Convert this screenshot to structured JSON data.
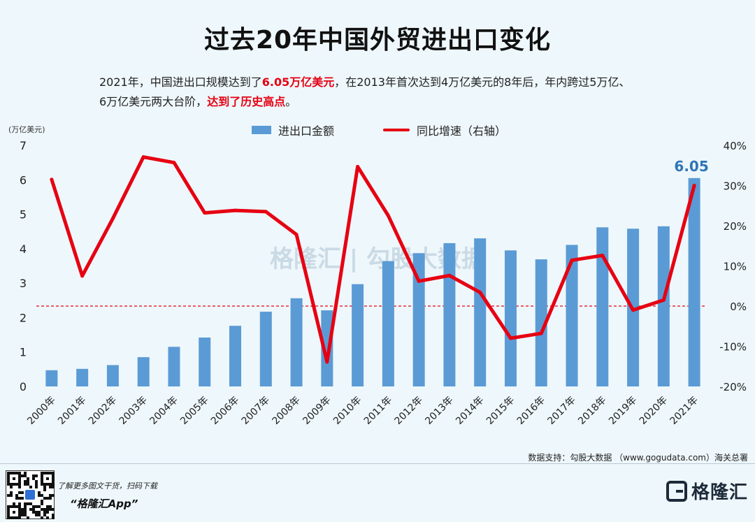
{
  "title": "过去20年中国外贸进出口变化",
  "subtitle": {
    "line1_a": "2021年，中国进出口规模达到了",
    "line1_hl": "6.05万亿美元",
    "line1_b": "，在2013年首次达到4万亿美元的8年后，年内跨过5万亿、",
    "line2_a": "6万亿美元两大台阶，",
    "line2_hl": "达到了历史高点",
    "line2_b": "。"
  },
  "unit_label": "(万亿美元)",
  "legend": {
    "bar": "进出口金额",
    "line": "同比增速（右轴）"
  },
  "watermark": "格隆汇 | 勾股大数据",
  "source": "数据支持：勾股大数据 （www.gogudata.com）海关总署",
  "footer": {
    "note": "了解更多图文干货，扫码下载",
    "app": "“格隆汇App”",
    "brand": "格隆汇"
  },
  "colors": {
    "bar": "#5b9bd5",
    "line": "#e60012",
    "zero_line": "#e60012",
    "label": "#2e75b6"
  },
  "chart_data": {
    "type": "bar",
    "categories": [
      "2000年",
      "2001年",
      "2002年",
      "2003年",
      "2004年",
      "2005年",
      "2006年",
      "2007年",
      "2008年",
      "2009年",
      "2010年",
      "2011年",
      "2012年",
      "2013年",
      "2014年",
      "2015年",
      "2016年",
      "2017年",
      "2018年",
      "2019年",
      "2020年",
      "2021年"
    ],
    "series": [
      {
        "name": "进出口金额",
        "type": "bar",
        "axis": "left",
        "values": [
          0.47,
          0.51,
          0.62,
          0.85,
          1.15,
          1.42,
          1.76,
          2.17,
          2.56,
          2.21,
          2.97,
          3.64,
          3.87,
          4.16,
          4.3,
          3.95,
          3.69,
          4.11,
          4.62,
          4.58,
          4.65,
          6.05
        ]
      },
      {
        "name": "同比增速（右轴）",
        "type": "line",
        "axis": "right",
        "values": [
          31.5,
          7.5,
          21.8,
          37.1,
          35.7,
          23.2,
          23.8,
          23.5,
          17.8,
          -13.9,
          34.7,
          22.5,
          6.2,
          7.6,
          3.4,
          -8.0,
          -6.8,
          11.4,
          12.6,
          -1.0,
          1.5,
          30.0
        ]
      }
    ],
    "annotation": "6.05",
    "y_left": {
      "min": 0,
      "max": 7,
      "ticks": [
        "0",
        "1",
        "2",
        "3",
        "4",
        "5",
        "6",
        "7"
      ]
    },
    "y_right": {
      "min": -20,
      "max": 40,
      "ticks": [
        "-20%",
        "-10%",
        "0%",
        "10%",
        "20%",
        "30%",
        "40%"
      ]
    },
    "zero_reference": "dashed at 0% (right axis)",
    "legend_position": "top-center"
  }
}
